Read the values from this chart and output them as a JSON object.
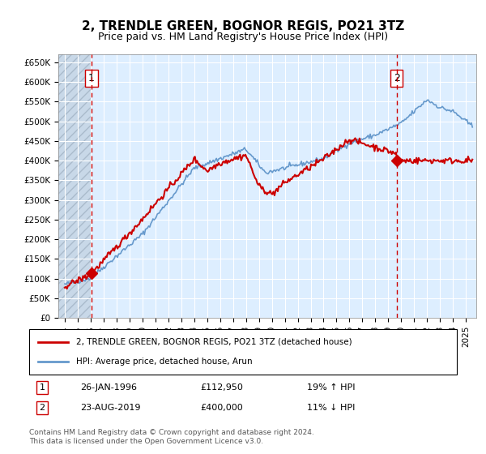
{
  "title": "2, TRENDLE GREEN, BOGNOR REGIS, PO21 3TZ",
  "subtitle": "Price paid vs. HM Land Registry's House Price Index (HPI)",
  "legend_line1": "2, TRENDLE GREEN, BOGNOR REGIS, PO21 3TZ (detached house)",
  "legend_line2": "HPI: Average price, detached house, Arun",
  "annotation1_label": "1",
  "annotation1_date": "26-JAN-1996",
  "annotation1_price": "£112,950",
  "annotation1_hpi": "19% ↑ HPI",
  "annotation2_label": "2",
  "annotation2_date": "23-AUG-2019",
  "annotation2_price": "£400,000",
  "annotation2_hpi": "11% ↓ HPI",
  "footer": "Contains HM Land Registry data © Crown copyright and database right 2024.\nThis data is licensed under the Open Government Licence v3.0.",
  "sale1_x": 1996.07,
  "sale1_y": 112950,
  "sale2_x": 2019.64,
  "sale2_y": 400000,
  "hpi_color": "#6699cc",
  "price_color": "#cc0000",
  "dashed_color": "#cc0000",
  "background_plot": "#ddeeff",
  "background_hatch": "#c8d8e8",
  "ylim": [
    0,
    670000
  ],
  "xlim_start": 1993.5,
  "xlim_end": 2025.8,
  "yticks": [
    0,
    50000,
    100000,
    150000,
    200000,
    250000,
    300000,
    350000,
    400000,
    450000,
    500000,
    550000,
    600000,
    650000
  ],
  "xticks": [
    1994,
    1995,
    1996,
    1997,
    1998,
    1999,
    2000,
    2001,
    2002,
    2003,
    2004,
    2005,
    2006,
    2007,
    2008,
    2009,
    2010,
    2011,
    2012,
    2013,
    2014,
    2015,
    2016,
    2017,
    2018,
    2019,
    2020,
    2021,
    2022,
    2023,
    2024,
    2025
  ]
}
